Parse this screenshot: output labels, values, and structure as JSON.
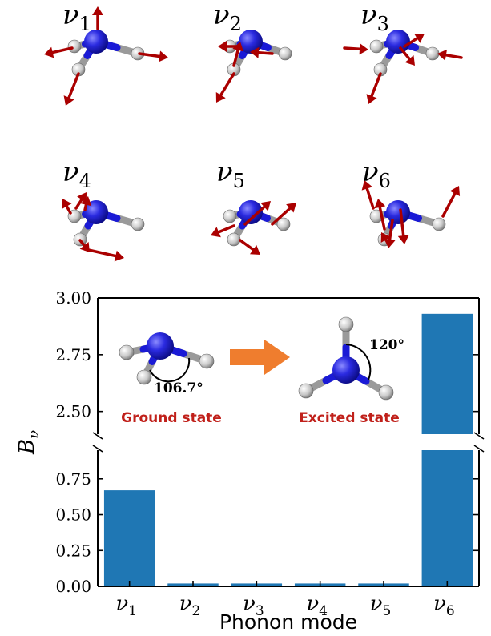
{
  "modes": [
    {
      "symbol": "ν",
      "sub": "1"
    },
    {
      "symbol": "ν",
      "sub": "2"
    },
    {
      "symbol": "ν",
      "sub": "3"
    },
    {
      "symbol": "ν",
      "sub": "4"
    },
    {
      "symbol": "ν",
      "sub": "5"
    },
    {
      "symbol": "ν",
      "sub": "6"
    }
  ],
  "inset": {
    "ground_label": "Ground state",
    "excited_label": "Excited state",
    "ground_angle": "106.7°",
    "excited_angle": "120°"
  },
  "colors": {
    "bar": "#1f77b4",
    "arrow": "#aa0000",
    "nitrogen": "#1a1ad6",
    "hydrogen": "#c8c8c8",
    "process_arrow": "#ef7d2e",
    "state_label": "#c0201a"
  },
  "chart_data": {
    "type": "bar",
    "categories": [
      "ν1",
      "ν2",
      "ν3",
      "ν4",
      "ν5",
      "ν6"
    ],
    "values": [
      0.67,
      0.02,
      0.02,
      0.02,
      0.02,
      2.93
    ],
    "xlabel": "Phonon mode",
    "ylabel": "B_ν",
    "axis_break": {
      "lower_range": [
        0,
        0.95
      ],
      "upper_range": [
        2.4,
        3.0
      ]
    },
    "yticks_lower": [
      "0.00",
      "0.25",
      "0.50",
      "0.75"
    ],
    "yticks_upper": [
      "2.50",
      "2.75",
      "3.00"
    ],
    "tick_label_style": {
      "symbol": "ν",
      "subscripts": [
        "1",
        "2",
        "3",
        "4",
        "5",
        "6"
      ]
    }
  }
}
